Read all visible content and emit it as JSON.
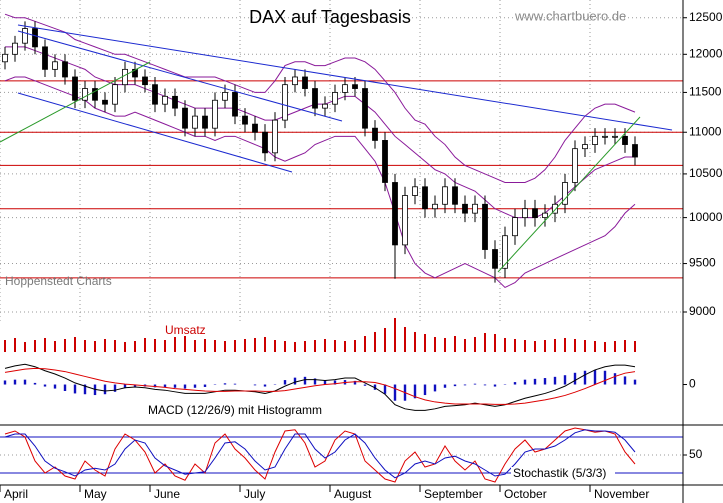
{
  "chart_data": [
    {
      "type": "candlestick",
      "title": "DAX auf Tagesbasis",
      "source": "www.chartbuero.de",
      "credit": "Hoppenstedt Charts",
      "log_scale": true,
      "grid": true,
      "ylim": [
        8900,
        12750
      ],
      "yticks": [
        12500,
        12000,
        11500,
        11000,
        10500,
        10000,
        9500,
        9000
      ],
      "categories": [
        "April",
        null,
        null,
        null,
        null,
        null,
        null,
        null,
        "May",
        null,
        null,
        null,
        null,
        null,
        null,
        "June",
        null,
        null,
        null,
        null,
        null,
        null,
        null,
        null,
        "July",
        null,
        null,
        null,
        null,
        null,
        null,
        null,
        null,
        "August",
        null,
        null,
        null,
        null,
        null,
        null,
        null,
        null,
        "September",
        null,
        null,
        null,
        null,
        null,
        null,
        null,
        "October",
        null,
        null,
        null,
        null,
        null,
        null,
        null,
        null,
        "November",
        null,
        null,
        null,
        null
      ],
      "open": [
        11900,
        12000,
        12150,
        12350,
        12100,
        11800,
        11900,
        11700,
        11400,
        11550,
        11400,
        11350,
        11600,
        11800,
        11700,
        11600,
        11350,
        11450,
        11300,
        11050,
        11200,
        11050,
        11400,
        11500,
        11200,
        11100,
        11000,
        10750,
        11150,
        11600,
        11700,
        11550,
        11300,
        11350,
        11500,
        11600,
        11550,
        11050,
        10900,
        10400,
        9700,
        10250,
        10350,
        10100,
        10150,
        10350,
        10150,
        10050,
        10150,
        9650,
        9450,
        9800,
        10000,
        10100,
        10000,
        10050,
        10150,
        10400,
        10800,
        10850,
        10950,
        10950,
        10950,
        10850
      ],
      "high": [
        12100,
        12250,
        12450,
        12450,
        12200,
        12000,
        12000,
        11800,
        11650,
        11650,
        11500,
        11700,
        11900,
        11900,
        11800,
        11700,
        11550,
        11550,
        11400,
        11300,
        11300,
        11500,
        11600,
        11600,
        11300,
        11200,
        11100,
        11250,
        11700,
        11800,
        11800,
        11650,
        11450,
        11600,
        11700,
        11700,
        11650,
        11150,
        11000,
        10500,
        10350,
        10450,
        10450,
        10250,
        10450,
        10450,
        10250,
        10250,
        10250,
        9750,
        9900,
        10100,
        10200,
        10200,
        10150,
        10250,
        10500,
        10900,
        10950,
        11050,
        11050,
        11050,
        11050,
        10950
      ],
      "low": [
        11800,
        11900,
        12050,
        12000,
        11700,
        11700,
        11600,
        11300,
        11300,
        11300,
        11250,
        11250,
        11500,
        11600,
        11500,
        11250,
        11250,
        11200,
        10950,
        10950,
        10950,
        10950,
        11300,
        11100,
        11000,
        10900,
        10650,
        10650,
        11050,
        11500,
        11450,
        11200,
        11200,
        11250,
        11400,
        11450,
        10950,
        10800,
        10300,
        9340,
        9600,
        10150,
        10000,
        10000,
        10050,
        10050,
        9950,
        9950,
        9550,
        9300,
        9350,
        9700,
        9900,
        9900,
        9900,
        9950,
        10050,
        10300,
        10700,
        10750,
        10850,
        10850,
        10750,
        10600
      ],
      "close": [
        12000,
        12150,
        12350,
        12100,
        11800,
        11900,
        11700,
        11400,
        11550,
        11400,
        11350,
        11600,
        11800,
        11700,
        11600,
        11350,
        11450,
        11300,
        11050,
        11200,
        11050,
        11400,
        11500,
        11200,
        11100,
        11000,
        10750,
        11150,
        11600,
        11700,
        11550,
        11300,
        11350,
        11500,
        11600,
        11550,
        11050,
        10900,
        10400,
        9700,
        10250,
        10350,
        10100,
        10150,
        10350,
        10150,
        10050,
        10150,
        9650,
        9450,
        9800,
        10000,
        10100,
        10000,
        10050,
        10150,
        10400,
        10800,
        10850,
        10950,
        10950,
        10950,
        10850,
        10700
      ],
      "up_color": "#ffffff",
      "down_color": "#000000",
      "levels": [
        11650,
        11000,
        10600,
        10100,
        9350
      ],
      "level_color": "#cc0000",
      "series": [
        {
          "color": "#8a1a9a",
          "values": [
            12550,
            12500,
            12500,
            12450,
            12400,
            12350,
            12300,
            12200,
            12150,
            12100,
            12050,
            12000,
            12000,
            11950,
            11900,
            11850,
            11800,
            11750,
            11700,
            11700,
            11700,
            11700,
            11650,
            11600,
            11550,
            11500,
            11500,
            11650,
            11850,
            11900,
            11900,
            11850,
            11850,
            11900,
            11950,
            11950,
            11900,
            11800,
            11650,
            11500,
            11300,
            11150,
            11100,
            10950,
            10850,
            10700,
            10600,
            10550,
            10500,
            10450,
            10400,
            10400,
            10400,
            10450,
            10550,
            10700,
            10900,
            11050,
            11200,
            11300,
            11350,
            11350,
            11300,
            11250
          ]
        },
        {
          "color": "#8a1a9a",
          "values": [
            12100,
            12100,
            12100,
            12050,
            12000,
            11950,
            11900,
            11850,
            11800,
            11700,
            11650,
            11600,
            11600,
            11600,
            11550,
            11500,
            11450,
            11400,
            11350,
            11300,
            11300,
            11300,
            11300,
            11300,
            11250,
            11200,
            11150,
            11150,
            11200,
            11250,
            11300,
            11350,
            11350,
            11400,
            11450,
            11450,
            11350,
            11250,
            11100,
            10950,
            10850,
            10750,
            10650,
            10550,
            10500,
            10400,
            10350,
            10300,
            10200,
            10100,
            10050,
            10000,
            10000,
            10000,
            10050,
            10150,
            10250,
            10350,
            10450,
            10550,
            10600,
            10650,
            10700,
            10700
          ]
        },
        {
          "color": "#8a1a9a",
          "values": [
            11650,
            11700,
            11700,
            11650,
            11600,
            11550,
            11500,
            11450,
            11400,
            11300,
            11250,
            11200,
            11200,
            11250,
            11200,
            11150,
            11100,
            11050,
            11000,
            10950,
            10950,
            10900,
            10950,
            10950,
            10900,
            10850,
            10800,
            10700,
            10650,
            10700,
            10750,
            10850,
            10900,
            10950,
            10950,
            10950,
            10800,
            10650,
            10400,
            10050,
            9700,
            9500,
            9400,
            9350,
            9400,
            9450,
            9500,
            9450,
            9400,
            9350,
            9250,
            9300,
            9400,
            9450,
            9500,
            9550,
            9600,
            9650,
            9700,
            9750,
            9800,
            9900,
            10050,
            10150
          ]
        }
      ]
    },
    {
      "type": "bar",
      "title": "Umsatz",
      "color": "#cc0000",
      "values": [
        12,
        14,
        10,
        12,
        14,
        11,
        13,
        15,
        12,
        11,
        13,
        12,
        10,
        11,
        14,
        13,
        12,
        15,
        16,
        12,
        13,
        12,
        11,
        12,
        13,
        14,
        15,
        12,
        11,
        10,
        11,
        12,
        13,
        12,
        11,
        12,
        16,
        20,
        24,
        34,
        25,
        20,
        18,
        15,
        14,
        16,
        13,
        15,
        19,
        18,
        14,
        13,
        12,
        11,
        12,
        13,
        14,
        13,
        12,
        11,
        10,
        11,
        12,
        11
      ]
    },
    {
      "type": "line",
      "title": "MACD (12/26/9) mit Histogramm",
      "ylim": [
        -500,
        550
      ],
      "yticks": [
        0
      ],
      "series": [
        {
          "kind": "bar",
          "color": "#1010c0",
          "values": [
            50,
            60,
            60,
            20,
            -25,
            -50,
            -80,
            -110,
            -120,
            -130,
            -120,
            -90,
            -45,
            -25,
            -25,
            -35,
            -35,
            -40,
            -50,
            -40,
            -30,
            -5,
            15,
            10,
            0,
            -10,
            -25,
            5,
            55,
            85,
            95,
            75,
            50,
            50,
            55,
            45,
            -15,
            -65,
            -115,
            -200,
            -200,
            -170,
            -130,
            -85,
            -40,
            -20,
            -10,
            10,
            -10,
            -25,
            -5,
            30,
            60,
            70,
            80,
            95,
            115,
            145,
            170,
            180,
            170,
            140,
            100,
            60
          ]
        },
        {
          "kind": "line",
          "color": "#000000",
          "values": [
            200,
            230,
            250,
            220,
            170,
            130,
            80,
            20,
            -20,
            -60,
            -80,
            -70,
            -40,
            -30,
            -40,
            -60,
            -70,
            -90,
            -110,
            -110,
            -110,
            -90,
            -70,
            -70,
            -80,
            -90,
            -110,
            -80,
            -20,
            30,
            60,
            60,
            50,
            60,
            80,
            80,
            20,
            -40,
            -120,
            -250,
            -300,
            -320,
            -320,
            -300,
            -270,
            -260,
            -250,
            -230,
            -250,
            -270,
            -250,
            -210,
            -170,
            -140,
            -110,
            -70,
            -20,
            50,
            120,
            180,
            220,
            240,
            240,
            220
          ]
        },
        {
          "kind": "line",
          "color": "#dd0000",
          "values": [
            150,
            170,
            190,
            200,
            195,
            180,
            160,
            130,
            100,
            70,
            40,
            20,
            5,
            -5,
            -15,
            -25,
            -35,
            -50,
            -60,
            -70,
            -80,
            -85,
            -85,
            -80,
            -80,
            -80,
            -85,
            -85,
            -75,
            -55,
            -35,
            -15,
            0,
            10,
            25,
            35,
            35,
            25,
            -5,
            -50,
            -100,
            -150,
            -190,
            -215,
            -230,
            -240,
            -240,
            -240,
            -240,
            -245,
            -245,
            -240,
            -230,
            -210,
            -190,
            -165,
            -135,
            -95,
            -50,
            0,
            50,
            100,
            140,
            160
          ]
        }
      ]
    },
    {
      "type": "line",
      "title": "Stochastik (5/3/3)",
      "ylim": [
        0,
        100
      ],
      "yticks": [
        50
      ],
      "levels": [
        20,
        80
      ],
      "level_color": "#1010c0",
      "series": [
        {
          "color": "#dd0000",
          "values": [
            85,
            90,
            80,
            40,
            20,
            30,
            15,
            10,
            40,
            25,
            15,
            60,
            85,
            75,
            55,
            20,
            35,
            15,
            8,
            35,
            20,
            70,
            85,
            60,
            45,
            25,
            10,
            55,
            90,
            92,
            70,
            30,
            40,
            75,
            90,
            85,
            40,
            25,
            10,
            5,
            40,
            55,
            30,
            35,
            65,
            40,
            25,
            40,
            10,
            5,
            35,
            60,
            75,
            55,
            60,
            75,
            90,
            95,
            92,
            88,
            90,
            85,
            55,
            35
          ]
        },
        {
          "color": "#1010c0",
          "values": [
            80,
            85,
            85,
            65,
            40,
            28,
            22,
            15,
            25,
            28,
            25,
            35,
            60,
            75,
            70,
            45,
            32,
            25,
            18,
            20,
            22,
            45,
            70,
            72,
            60,
            40,
            25,
            30,
            60,
            85,
            85,
            60,
            45,
            55,
            75,
            85,
            70,
            45,
            25,
            12,
            20,
            35,
            40,
            35,
            45,
            48,
            40,
            35,
            25,
            15,
            18,
            35,
            55,
            60,
            60,
            65,
            75,
            87,
            92,
            90,
            90,
            88,
            75,
            55
          ]
        }
      ]
    }
  ]
}
